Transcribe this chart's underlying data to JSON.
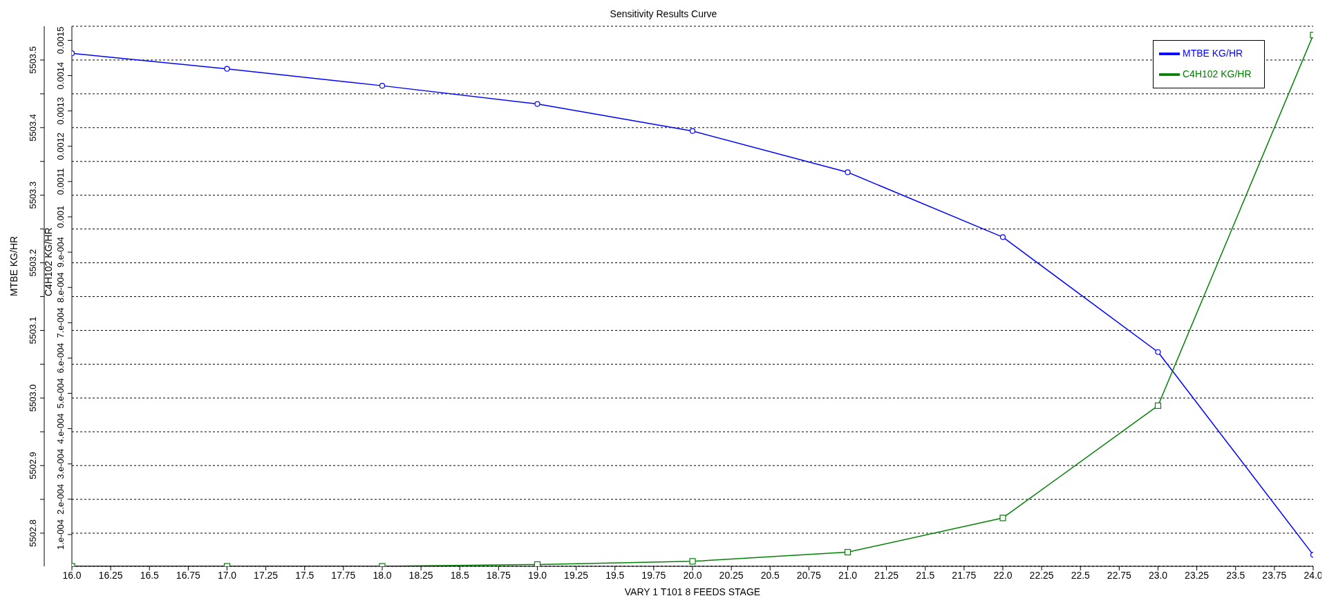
{
  "chart_data": {
    "type": "line",
    "title": "Sensitivity Results Curve",
    "xlabel": "VARY   1 T101 8 FEEDS STAGE",
    "ylabel": "MTBE KG/HR",
    "y2label": "C4H102 KG/HR",
    "x": [
      16,
      17,
      18,
      19,
      20,
      21,
      22,
      23,
      24
    ],
    "series": [
      {
        "name": "MTBE KG/HR",
        "color": "#0000ff",
        "marker": "circle",
        "values": [
          5503.51,
          5503.487,
          5503.462,
          5503.435,
          5503.395,
          5503.334,
          5503.238,
          5503.068,
          5502.768
        ]
      },
      {
        "name": "C4H102 KG/HR",
        "color": "#008000",
        "marker": "square",
        "axis": "y2",
        "values": [
          1e-05,
          1e-05,
          1e-05,
          1.5e-05,
          2.4e-05,
          5e-05,
          0.000147,
          0.000465,
          0.001515
        ]
      }
    ],
    "xlim": [
      16,
      24
    ],
    "xticks": [
      {
        "value": 16,
        "label": "16.0"
      },
      16.25,
      16.5,
      16.75,
      {
        "value": 17,
        "label": "17.0"
      },
      17.25,
      17.5,
      17.75,
      {
        "value": 18,
        "label": "18.0"
      },
      18.25,
      18.5,
      18.75,
      {
        "value": 19,
        "label": "19.0"
      },
      19.25,
      19.5,
      19.75,
      {
        "value": 20,
        "label": "20.0"
      },
      20.25,
      20.5,
      20.75,
      {
        "value": 21,
        "label": "21.0"
      },
      21.25,
      21.5,
      21.75,
      {
        "value": 22,
        "label": "22.0"
      },
      22.25,
      22.5,
      22.75,
      {
        "value": 23,
        "label": "23.0"
      },
      23.25,
      23.5,
      23.75,
      {
        "value": 24,
        "label": "24.0"
      }
    ],
    "ylim": [
      5502.751,
      5503.55
    ],
    "yticks": [
      5502.8,
      {
        "value": 5502.85,
        "label": null
      },
      5502.9,
      {
        "value": 5502.95,
        "label": null
      },
      {
        "value": 5503.0,
        "label": "5503.0"
      },
      {
        "value": 5503.05,
        "label": null
      },
      5503.1,
      {
        "value": 5503.15,
        "label": null
      },
      5503.2,
      {
        "value": 5503.25,
        "label": null
      },
      5503.3,
      {
        "value": 5503.35,
        "label": null
      },
      5503.4,
      {
        "value": 5503.45,
        "label": null
      },
      5503.5
    ],
    "y2lim": [
      1e-05,
      0.00154
    ],
    "y2ticks": [
      {
        "value": 0.0001,
        "label": "1.e-004"
      },
      {
        "value": 0.0002,
        "label": "2.e-004"
      },
      {
        "value": 0.0003,
        "label": "3.e-004"
      },
      {
        "value": 0.0004,
        "label": "4.e-004"
      },
      {
        "value": 0.0005,
        "label": "5.e-004"
      },
      {
        "value": 0.0006,
        "label": "6.e-004"
      },
      {
        "value": 0.0007,
        "label": "7.e-004"
      },
      {
        "value": 0.0008,
        "label": "8.e-004"
      },
      {
        "value": 0.0009,
        "label": "9.e-004"
      },
      0.001,
      0.0011,
      0.0012,
      0.0013,
      0.0014,
      0.0015
    ],
    "grid": "y",
    "legend": "top right"
  }
}
